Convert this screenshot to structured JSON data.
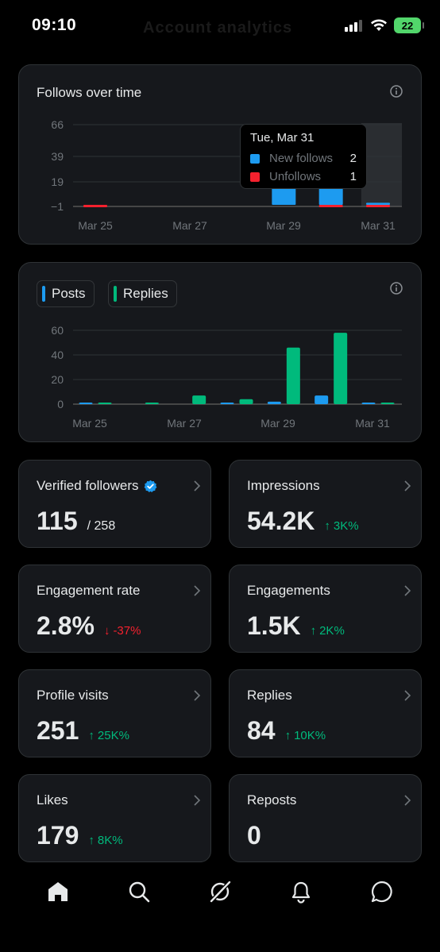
{
  "status_bar": {
    "time": "09:10",
    "battery": "22",
    "ghost_title": "Account analytics"
  },
  "follows_card": {
    "title": "Follows over time",
    "tooltip": {
      "date": "Tue, Mar 31",
      "rows": [
        {
          "label": "New follows",
          "value": "2",
          "color": "#1d9bf0"
        },
        {
          "label": "Unfollows",
          "value": "1",
          "color": "#f4212e"
        }
      ]
    }
  },
  "posts_card": {
    "legend": [
      {
        "label": "Posts",
        "color": "#1d9bf0"
      },
      {
        "label": "Replies",
        "color": "#00ba7c"
      }
    ]
  },
  "chart_data": [
    {
      "type": "bar",
      "title": "Follows over time",
      "y_ticks": [
        "66",
        "39",
        "19",
        "−1"
      ],
      "x_ticks": [
        "Mar 25",
        "Mar 27",
        "Mar 29",
        "Mar 31"
      ],
      "categories": [
        "Mar 25",
        "Mar 26",
        "Mar 27",
        "Mar 28",
        "Mar 29",
        "Mar 30",
        "Mar 31"
      ],
      "series": [
        {
          "name": "New follows",
          "color": "#1d9bf0",
          "values": [
            0,
            0,
            0,
            0,
            66,
            19,
            2
          ]
        },
        {
          "name": "Unfollows",
          "color": "#f4212e",
          "values": [
            -1,
            0,
            0,
            0,
            0,
            -1,
            -1
          ]
        }
      ],
      "ylim": [
        -1,
        66
      ],
      "highlight": "Mar 31"
    },
    {
      "type": "bar",
      "y_ticks": [
        "60",
        "40",
        "20",
        "0"
      ],
      "x_ticks": [
        "Mar 25",
        "Mar 27",
        "Mar 29",
        "Mar 31"
      ],
      "categories": [
        "Mar 25",
        "Mar 26",
        "Mar 27",
        "Mar 28",
        "Mar 29",
        "Mar 30",
        "Mar 31"
      ],
      "series": [
        {
          "name": "Posts",
          "color": "#1d9bf0",
          "values": [
            1,
            0,
            0,
            1,
            2,
            7,
            1
          ]
        },
        {
          "name": "Replies",
          "color": "#00ba7c",
          "values": [
            1,
            1,
            7,
            4,
            46,
            58,
            1
          ]
        }
      ],
      "ylim": [
        0,
        60
      ]
    }
  ],
  "stats": [
    {
      "title": "Verified followers",
      "value": "115",
      "sub": "/ 258",
      "verified": true
    },
    {
      "title": "Impressions",
      "value": "54.2K",
      "delta": "3K%",
      "direction": "up"
    },
    {
      "title": "Engagement rate",
      "value": "2.8%",
      "delta": "-37%",
      "direction": "down"
    },
    {
      "title": "Engagements",
      "value": "1.5K",
      "delta": "2K%",
      "direction": "up"
    },
    {
      "title": "Profile visits",
      "value": "251",
      "delta": "25K%",
      "direction": "up"
    },
    {
      "title": "Replies",
      "value": "84",
      "delta": "10K%",
      "direction": "up"
    },
    {
      "title": "Likes",
      "value": "179",
      "delta": "8K%",
      "direction": "up"
    },
    {
      "title": "Reposts",
      "value": "0"
    }
  ],
  "nav": [
    "home-icon",
    "search-icon",
    "grok-icon",
    "bell-icon",
    "messages-icon"
  ]
}
